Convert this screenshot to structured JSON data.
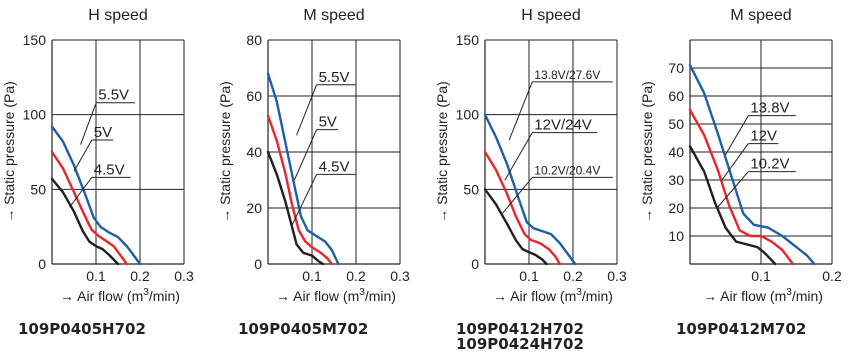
{
  "colors": {
    "blue": "#1f5fa6",
    "red": "#e8262b",
    "black": "#231f20"
  },
  "chart_data": [
    {
      "type": "line",
      "title": "H speed",
      "ylabel": "→ Static pressure (Pa)",
      "xlabel_prefix": "→ Air flow (m",
      "xlabel_sup": "3",
      "xlabel_suffix": "/min)",
      "xlim": [
        0,
        0.3
      ],
      "ylim": [
        0,
        150
      ],
      "xticks": [
        {
          "v": 0.1,
          "label": "0.1"
        },
        {
          "v": 0.2,
          "label": "0.2"
        },
        {
          "v": 0.3,
          "label": "0.3"
        }
      ],
      "yticks": [
        {
          "v": 0,
          "label": "0"
        },
        {
          "v": 50,
          "label": "50"
        },
        {
          "v": 100,
          "label": "100"
        },
        {
          "v": 150,
          "label": "150"
        }
      ],
      "grid": true,
      "model": [
        "109P0405H702"
      ],
      "series": [
        {
          "name": "5.5V",
          "color": "#1f5fa6",
          "points": [
            [
              0,
              92
            ],
            [
              0.025,
              82
            ],
            [
              0.05,
              66
            ],
            [
              0.075,
              47
            ],
            [
              0.095,
              31
            ],
            [
              0.11,
              25
            ],
            [
              0.13,
              21
            ],
            [
              0.15,
              18
            ],
            [
              0.17,
              12
            ],
            [
              0.185,
              6
            ],
            [
              0.2,
              0
            ]
          ]
        },
        {
          "name": "5V",
          "color": "#e8262b",
          "points": [
            [
              0,
              75
            ],
            [
              0.025,
              64
            ],
            [
              0.05,
              48
            ],
            [
              0.075,
              32
            ],
            [
              0.09,
              23
            ],
            [
              0.105,
              19
            ],
            [
              0.12,
              16
            ],
            [
              0.14,
              12
            ],
            [
              0.155,
              6
            ],
            [
              0.17,
              0
            ]
          ]
        },
        {
          "name": "4.5V",
          "color": "#231f20",
          "points": [
            [
              0,
              57
            ],
            [
              0.025,
              48
            ],
            [
              0.05,
              35
            ],
            [
              0.07,
              22
            ],
            [
              0.085,
              15
            ],
            [
              0.1,
              12
            ],
            [
              0.115,
              10
            ],
            [
              0.13,
              6
            ],
            [
              0.14,
              3
            ],
            [
              0.15,
              0
            ]
          ]
        }
      ],
      "annotations": [
        {
          "text": "5.5V",
          "x": 0.105,
          "y": 108,
          "tx": 0.065,
          "ty": 80
        },
        {
          "text": "5V",
          "x": 0.095,
          "y": 83,
          "tx": 0.05,
          "ty": 62
        },
        {
          "text": "4.5V",
          "x": 0.095,
          "y": 58,
          "tx": 0.04,
          "ty": 38
        }
      ]
    },
    {
      "type": "line",
      "title": "M speed",
      "ylabel": "→ Static pressure (Pa)",
      "xlabel_prefix": "→ Air flow (m",
      "xlabel_sup": "3",
      "xlabel_suffix": "/min)",
      "xlim": [
        0,
        0.3
      ],
      "ylim": [
        0,
        80
      ],
      "xticks": [
        {
          "v": 0.1,
          "label": "0.1"
        },
        {
          "v": 0.2,
          "label": "0.2"
        },
        {
          "v": 0.3,
          "label": "0.3"
        }
      ],
      "yticks": [
        {
          "v": 0,
          "label": "0"
        },
        {
          "v": 20,
          "label": "20"
        },
        {
          "v": 40,
          "label": "40"
        },
        {
          "v": 60,
          "label": "60"
        },
        {
          "v": 80,
          "label": "80"
        }
      ],
      "grid": true,
      "model": [
        "109P0405M702"
      ],
      "series": [
        {
          "name": "5.5V",
          "color": "#1f5fa6",
          "points": [
            [
              0,
              68
            ],
            [
              0.02,
              58
            ],
            [
              0.04,
              43
            ],
            [
              0.06,
              28
            ],
            [
              0.075,
              17
            ],
            [
              0.09,
              12
            ],
            [
              0.11,
              10
            ],
            [
              0.13,
              8
            ],
            [
              0.145,
              5
            ],
            [
              0.16,
              0
            ]
          ]
        },
        {
          "name": "5V",
          "color": "#e8262b",
          "points": [
            [
              0,
              53
            ],
            [
              0.02,
              44
            ],
            [
              0.04,
              32
            ],
            [
              0.055,
              21
            ],
            [
              0.07,
              12
            ],
            [
              0.085,
              8
            ],
            [
              0.1,
              6
            ],
            [
              0.12,
              4
            ],
            [
              0.135,
              2
            ],
            [
              0.145,
              0
            ]
          ]
        },
        {
          "name": "4.5V",
          "color": "#231f20",
          "points": [
            [
              0,
              40
            ],
            [
              0.02,
              32
            ],
            [
              0.04,
              22
            ],
            [
              0.055,
              13
            ],
            [
              0.065,
              7
            ],
            [
              0.08,
              4
            ],
            [
              0.1,
              3
            ],
            [
              0.115,
              1
            ],
            [
              0.125,
              0
            ]
          ]
        }
      ],
      "annotations": [
        {
          "text": "5.5V",
          "x": 0.115,
          "y": 64,
          "tx": 0.065,
          "ty": 46
        },
        {
          "text": "5V",
          "x": 0.115,
          "y": 48,
          "tx": 0.06,
          "ty": 30
        },
        {
          "text": "4.5V",
          "x": 0.115,
          "y": 32,
          "tx": 0.055,
          "ty": 14
        }
      ]
    },
    {
      "type": "line",
      "title": "H speed",
      "ylabel": "→ Static pressure (Pa)",
      "xlabel_prefix": "→ Air flow (m",
      "xlabel_sup": "3",
      "xlabel_suffix": "/min)",
      "xlim": [
        0,
        0.3
      ],
      "ylim": [
        0,
        150
      ],
      "xticks": [
        {
          "v": 0.1,
          "label": "0.1"
        },
        {
          "v": 0.2,
          "label": "0.2"
        },
        {
          "v": 0.3,
          "label": "0.3"
        }
      ],
      "yticks": [
        {
          "v": 0,
          "label": "0"
        },
        {
          "v": 50,
          "label": "50"
        },
        {
          "v": 100,
          "label": "100"
        },
        {
          "v": 150,
          "label": "150"
        }
      ],
      "grid": true,
      "model": [
        "109P0412H702",
        "109P0424H702"
      ],
      "series": [
        {
          "name": "13.8V/27.6V",
          "color": "#1f5fa6",
          "points": [
            [
              0,
              100
            ],
            [
              0.025,
              85
            ],
            [
              0.05,
              67
            ],
            [
              0.075,
              45
            ],
            [
              0.095,
              28
            ],
            [
              0.11,
              24
            ],
            [
              0.13,
              22
            ],
            [
              0.15,
              20
            ],
            [
              0.17,
              14
            ],
            [
              0.19,
              6
            ],
            [
              0.205,
              0
            ]
          ]
        },
        {
          "name": "12V/24V",
          "color": "#e8262b",
          "points": [
            [
              0,
              75
            ],
            [
              0.025,
              63
            ],
            [
              0.05,
              47
            ],
            [
              0.07,
              32
            ],
            [
              0.09,
              20
            ],
            [
              0.105,
              16
            ],
            [
              0.125,
              14
            ],
            [
              0.145,
              10
            ],
            [
              0.16,
              5
            ],
            [
              0.17,
              0
            ]
          ]
        },
        {
          "name": "10.2V/20.4V",
          "color": "#231f20",
          "points": [
            [
              0,
              50
            ],
            [
              0.025,
              40
            ],
            [
              0.05,
              27
            ],
            [
              0.07,
              16
            ],
            [
              0.085,
              10
            ],
            [
              0.1,
              8
            ],
            [
              0.115,
              6
            ],
            [
              0.13,
              3
            ],
            [
              0.14,
              0
            ]
          ]
        }
      ],
      "annotations": [
        {
          "text": "13.8V/27.6V",
          "x": 0.112,
          "y": 122,
          "tx": 0.055,
          "ty": 83
        },
        {
          "text": "12V/24V",
          "x": 0.112,
          "y": 88,
          "tx": 0.045,
          "ty": 56
        },
        {
          "text": "10.2V/20.4V",
          "x": 0.112,
          "y": 58,
          "tx": 0.04,
          "ty": 34
        }
      ]
    },
    {
      "type": "line",
      "title": "M speed",
      "ylabel": "→ Static pressure (Pa)",
      "xlabel_prefix": "→ Air flow (m",
      "xlabel_sup": "3",
      "xlabel_suffix": "/min)",
      "xlim": [
        0,
        0.2
      ],
      "ylim": [
        0,
        80
      ],
      "xticks": [
        {
          "v": 0.1,
          "label": "0.1"
        },
        {
          "v": 0.2,
          "label": "0.2"
        }
      ],
      "yticks": [
        {
          "v": 10,
          "label": "10"
        },
        {
          "v": 20,
          "label": "20"
        },
        {
          "v": 30,
          "label": "30"
        },
        {
          "v": 40,
          "label": "40"
        },
        {
          "v": 50,
          "label": "50"
        },
        {
          "v": 60,
          "label": "60"
        },
        {
          "v": 70,
          "label": "70"
        }
      ],
      "grid": true,
      "model": [
        "109P0412M702"
      ],
      "series": [
        {
          "name": "13.8V",
          "color": "#1f5fa6",
          "points": [
            [
              0,
              71
            ],
            [
              0.02,
              61
            ],
            [
              0.04,
              46
            ],
            [
              0.06,
              30
            ],
            [
              0.075,
              18
            ],
            [
              0.09,
              14
            ],
            [
              0.11,
              13
            ],
            [
              0.13,
              10
            ],
            [
              0.15,
              6
            ],
            [
              0.165,
              3
            ],
            [
              0.175,
              0
            ]
          ]
        },
        {
          "name": "12V",
          "color": "#e8262b",
          "points": [
            [
              0,
              55
            ],
            [
              0.02,
              46
            ],
            [
              0.04,
              33
            ],
            [
              0.055,
              21
            ],
            [
              0.07,
              12
            ],
            [
              0.085,
              10
            ],
            [
              0.1,
              10
            ],
            [
              0.115,
              8
            ],
            [
              0.13,
              5
            ],
            [
              0.145,
              0
            ]
          ]
        },
        {
          "name": "10.2V",
          "color": "#231f20",
          "points": [
            [
              0,
              42
            ],
            [
              0.02,
              33
            ],
            [
              0.035,
              22
            ],
            [
              0.05,
              13
            ],
            [
              0.065,
              8
            ],
            [
              0.08,
              7
            ],
            [
              0.095,
              6
            ],
            [
              0.105,
              4
            ],
            [
              0.12,
              0
            ]
          ]
        }
      ],
      "annotations": [
        {
          "text": "13.8V",
          "x": 0.085,
          "y": 53,
          "tx": 0.05,
          "ty": 39
        },
        {
          "text": "12V",
          "x": 0.085,
          "y": 43,
          "tx": 0.045,
          "ty": 30
        },
        {
          "text": "10.2V",
          "x": 0.085,
          "y": 33,
          "tx": 0.038,
          "ty": 20
        }
      ]
    }
  ]
}
